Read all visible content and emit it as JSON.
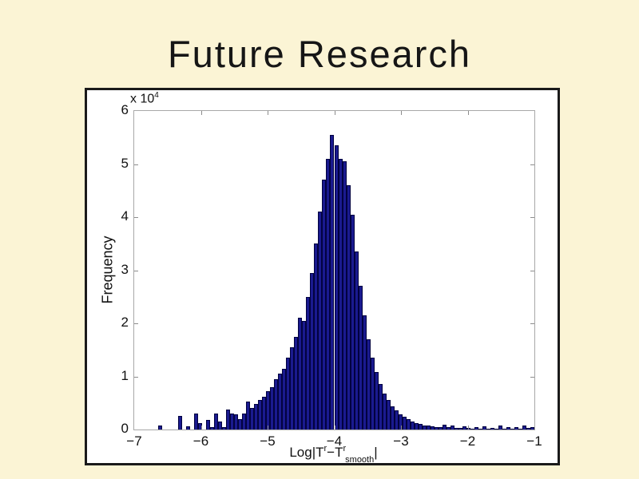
{
  "slide": {
    "title": "Future Research",
    "background_color": "#fbf4d5",
    "panel_border_color": "#1a1a1a"
  },
  "chart_data": {
    "type": "bar",
    "subtype": "histogram",
    "title": "",
    "xlabel": "Log|T^r - T^r_smooth|",
    "xlabel_parts": {
      "p1": "Log|T",
      "sup1": "r",
      "p2": "−T",
      "sup2": "r",
      "sub1": "smooth",
      "p3": "|"
    },
    "ylabel": "Frequency",
    "y_exponent_base": "x 10",
    "y_exponent_power": "4",
    "y_unit_multiplier": 10000,
    "xlim": [
      -7,
      -1
    ],
    "ylim": [
      0,
      6
    ],
    "xticks": [
      -7,
      -6,
      -5,
      -4,
      -3,
      -2,
      -1
    ],
    "xtick_labels": [
      "−7",
      "−6",
      "−5",
      "−4",
      "−3",
      "−2",
      "−1"
    ],
    "yticks": [
      0,
      1,
      2,
      3,
      4,
      5,
      6
    ],
    "ytick_labels": [
      "0",
      "1",
      "2",
      "3",
      "4",
      "5",
      "6"
    ],
    "grid": false,
    "legend": null,
    "bar_color": "#1a1a8f",
    "bar_edge_color": "#020240",
    "axis_color": "#a8a8a8",
    "bin_start": -7,
    "bin_width": 0.06,
    "values_x10e4": [
      0,
      0,
      0,
      0,
      0,
      0,
      0.07,
      0,
      0,
      0,
      0,
      0.25,
      0,
      0.06,
      0,
      0.3,
      0.12,
      0,
      0.18,
      0.04,
      0.3,
      0.15,
      0.05,
      0.38,
      0.3,
      0.28,
      0.2,
      0.3,
      0.52,
      0.4,
      0.48,
      0.55,
      0.62,
      0.72,
      0.8,
      0.95,
      1.05,
      1.15,
      1.35,
      1.55,
      1.75,
      2.1,
      2.05,
      2.5,
      2.95,
      3.5,
      4.1,
      4.7,
      5.1,
      5.55,
      5.35,
      5.1,
      5.05,
      4.6,
      4.05,
      3.35,
      2.7,
      2.15,
      1.7,
      1.35,
      1.08,
      0.85,
      0.68,
      0.55,
      0.44,
      0.36,
      0.29,
      0.24,
      0.19,
      0.15,
      0.12,
      0.1,
      0.08,
      0.07,
      0.06,
      0.05,
      0.04,
      0.09,
      0.04,
      0.08,
      0.03,
      0.03,
      0.06,
      0.03,
      0.02,
      0.05,
      0.02,
      0.06,
      0.02,
      0.03,
      0.02,
      0.07,
      0.02,
      0.04,
      0.02,
      0.05,
      0.02,
      0.08,
      0.03,
      0.05
    ],
    "peak": {
      "x": -4.03,
      "y_x10e4": 5.55
    }
  }
}
